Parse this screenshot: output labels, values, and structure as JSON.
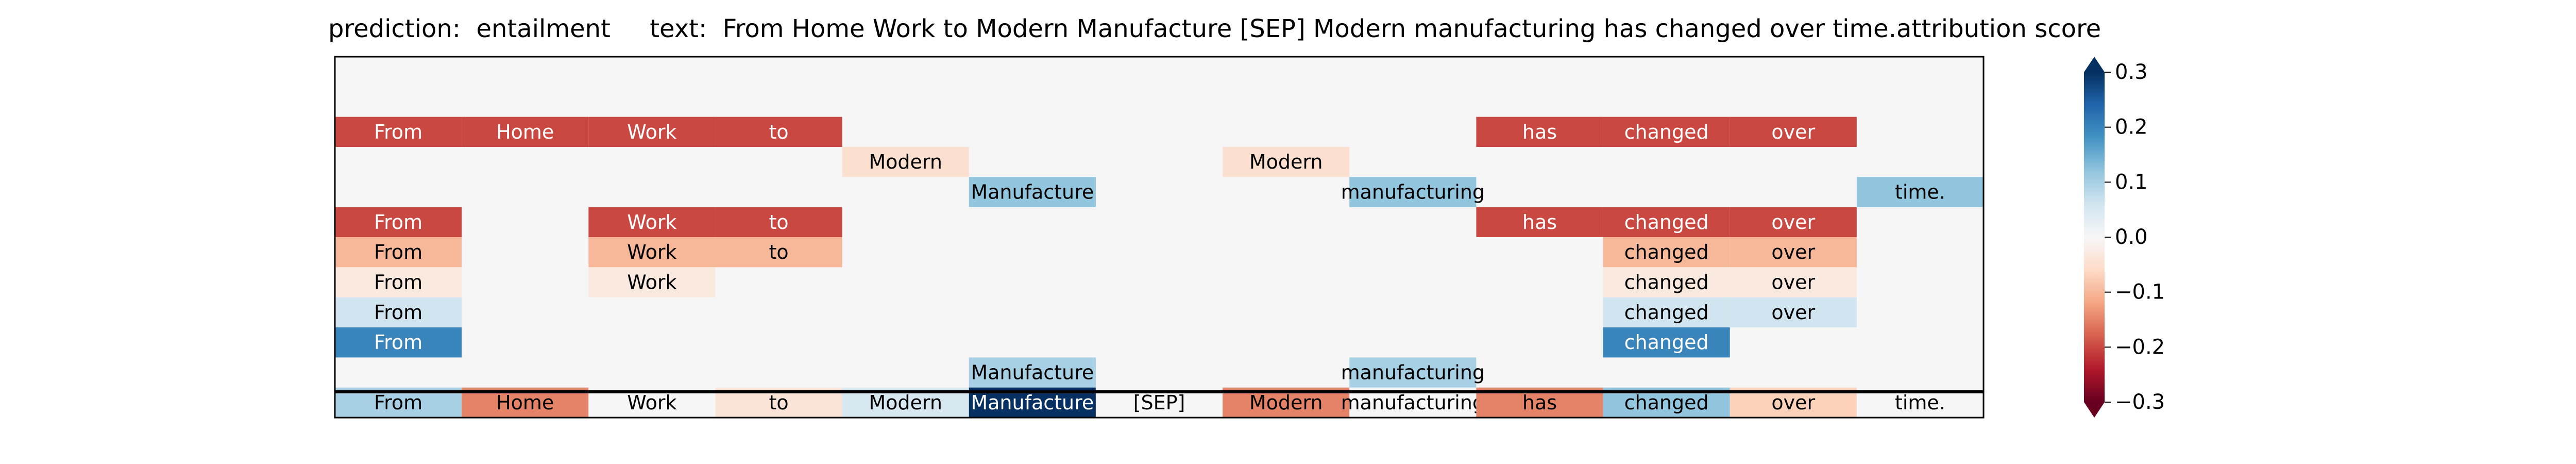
{
  "title": {
    "prediction_label": "prediction:",
    "prediction_value": "entailment",
    "text_label": "text:",
    "text_value": "From Home Work to Modern Manufacture [SEP] Modern manufacturing has changed over time.",
    "colorbar_label": "attribution score"
  },
  "chart_data": {
    "type": "heatmap",
    "columns": [
      "From",
      "Home",
      "Work",
      "to",
      "Modern",
      "Manufacture",
      "[SEP]",
      "Modern",
      "manufacturing",
      "has",
      "changed",
      "over",
      "time."
    ],
    "colorbar": {
      "min": -0.3,
      "max": 0.3,
      "ticks": [
        -0.3,
        -0.2,
        -0.1,
        0.0,
        0.1,
        0.2,
        0.3
      ],
      "tick_labels": [
        "−0.3",
        "−0.2",
        "−0.1",
        "0.0",
        "0.1",
        "0.2",
        "0.3"
      ],
      "extend": "both",
      "colormap": "RdBu"
    },
    "rows": [
      {
        "cells": []
      },
      {
        "cells": []
      },
      {
        "cells": [
          {
            "col": 0,
            "text": "From",
            "value": -0.2
          },
          {
            "col": 1,
            "text": "Home",
            "value": -0.2
          },
          {
            "col": 2,
            "text": "Work",
            "value": -0.2
          },
          {
            "col": 3,
            "text": "to",
            "value": -0.2
          },
          {
            "col": 9,
            "text": "has",
            "value": -0.2
          },
          {
            "col": 10,
            "text": "changed",
            "value": -0.2
          },
          {
            "col": 11,
            "text": "over",
            "value": -0.2
          }
        ]
      },
      {
        "cells": [
          {
            "col": 4,
            "text": "Modern",
            "value": -0.05
          },
          {
            "col": 7,
            "text": "Modern",
            "value": -0.05
          }
        ]
      },
      {
        "cells": [
          {
            "col": 5,
            "text": "Manufacture",
            "value": 0.12
          },
          {
            "col": 8,
            "text": "manufacturing",
            "value": 0.12
          },
          {
            "col": 12,
            "text": "time.",
            "value": 0.12
          }
        ]
      },
      {
        "cells": [
          {
            "col": 0,
            "text": "From",
            "value": -0.2
          },
          {
            "col": 2,
            "text": "Work",
            "value": -0.2
          },
          {
            "col": 3,
            "text": "to",
            "value": -0.2
          },
          {
            "col": 9,
            "text": "has",
            "value": -0.2
          },
          {
            "col": 10,
            "text": "changed",
            "value": -0.2
          },
          {
            "col": 11,
            "text": "over",
            "value": -0.2
          }
        ]
      },
      {
        "cells": [
          {
            "col": 0,
            "text": "From",
            "value": -0.1
          },
          {
            "col": 2,
            "text": "Work",
            "value": -0.1
          },
          {
            "col": 3,
            "text": "to",
            "value": -0.1
          },
          {
            "col": 10,
            "text": "changed",
            "value": -0.1
          },
          {
            "col": 11,
            "text": "over",
            "value": -0.1
          }
        ]
      },
      {
        "cells": [
          {
            "col": 0,
            "text": "From",
            "value": -0.03
          },
          {
            "col": 2,
            "text": "Work",
            "value": -0.03
          },
          {
            "col": 10,
            "text": "changed",
            "value": -0.03
          },
          {
            "col": 11,
            "text": "over",
            "value": -0.03
          }
        ]
      },
      {
        "cells": [
          {
            "col": 0,
            "text": "From",
            "value": 0.06
          },
          {
            "col": 10,
            "text": "changed",
            "value": 0.06
          },
          {
            "col": 11,
            "text": "over",
            "value": 0.06
          }
        ]
      },
      {
        "cells": [
          {
            "col": 0,
            "text": "From",
            "value": 0.2
          },
          {
            "col": 10,
            "text": "changed",
            "value": 0.2
          }
        ]
      },
      {
        "cells": [
          {
            "col": 5,
            "text": "Manufacture",
            "value": 0.1
          },
          {
            "col": 8,
            "text": "manufacturing",
            "value": 0.1
          }
        ]
      }
    ],
    "summary_row": [
      {
        "col": 0,
        "text": "From",
        "value": 0.1
      },
      {
        "col": 1,
        "text": "Home",
        "value": -0.15
      },
      {
        "col": 2,
        "text": "Work",
        "value": 0.0
      },
      {
        "col": 3,
        "text": "to",
        "value": -0.04
      },
      {
        "col": 4,
        "text": "Modern",
        "value": 0.05
      },
      {
        "col": 5,
        "text": "Manufacture",
        "value": 0.3
      },
      {
        "col": 6,
        "text": "[SEP]",
        "value": 0.0
      },
      {
        "col": 7,
        "text": "Modern",
        "value": -0.15
      },
      {
        "col": 8,
        "text": "manufacturing",
        "value": 0.0
      },
      {
        "col": 9,
        "text": "has",
        "value": -0.15
      },
      {
        "col": 10,
        "text": "changed",
        "value": 0.12
      },
      {
        "col": 11,
        "text": "over",
        "value": -0.07
      },
      {
        "col": 12,
        "text": "time.",
        "value": 0.0
      }
    ]
  }
}
